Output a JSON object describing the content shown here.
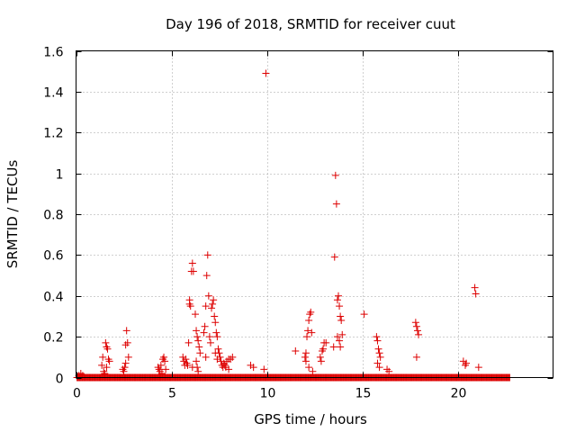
{
  "chart_data": {
    "type": "scatter",
    "title": "Day 196 of 2018, SRMTID for receiver cuut",
    "xlabel": "GPS time / hours",
    "ylabel": "SRMTID / TECUs",
    "xlim": [
      0,
      25
    ],
    "ylim": [
      0,
      1.6
    ],
    "xticks": [
      0,
      5,
      10,
      15,
      20
    ],
    "xtick_labels": [
      "0",
      "5",
      "10",
      "15",
      "20"
    ],
    "yticks": [
      0,
      0.2,
      0.4,
      0.6,
      0.8,
      1.0,
      1.2,
      1.4,
      1.6
    ],
    "ytick_labels": [
      "0",
      "0.2",
      "0.4",
      "0.6",
      "0.8",
      "1",
      "1.2",
      "1.4",
      "1.6"
    ],
    "grid": true,
    "marker": "+",
    "marker_color": "#dd0000",
    "baseline": {
      "y": 0.0,
      "x_start": 0.05,
      "x_end": 22.75,
      "step": 0.04
    },
    "series": [
      {
        "name": "SRMTID",
        "points": [
          [
            0.15,
            0.01
          ],
          [
            0.25,
            0.02
          ],
          [
            0.35,
            0.01
          ],
          [
            1.35,
            0.06
          ],
          [
            1.4,
            0.1
          ],
          [
            1.45,
            0.03
          ],
          [
            1.5,
            0.02
          ],
          [
            1.55,
            0.17
          ],
          [
            1.6,
            0.15
          ],
          [
            1.65,
            0.14
          ],
          [
            1.7,
            0.09
          ],
          [
            1.75,
            0.08
          ],
          [
            1.6,
            0.05
          ],
          [
            2.45,
            0.04
          ],
          [
            2.5,
            0.03
          ],
          [
            2.55,
            0.05
          ],
          [
            2.6,
            0.16
          ],
          [
            2.65,
            0.23
          ],
          [
            2.7,
            0.17
          ],
          [
            2.75,
            0.1
          ],
          [
            2.6,
            0.07
          ],
          [
            4.3,
            0.05
          ],
          [
            4.35,
            0.04
          ],
          [
            4.4,
            0.03
          ],
          [
            4.45,
            0.06
          ],
          [
            4.5,
            0.02
          ],
          [
            4.55,
            0.09
          ],
          [
            4.6,
            0.1
          ],
          [
            4.65,
            0.08
          ],
          [
            4.7,
            0.04
          ],
          [
            5.6,
            0.1
          ],
          [
            5.65,
            0.08
          ],
          [
            5.7,
            0.06
          ],
          [
            5.75,
            0.09
          ],
          [
            5.8,
            0.07
          ],
          [
            5.85,
            0.06
          ],
          [
            5.9,
            0.17
          ],
          [
            5.95,
            0.38
          ],
          [
            6.0,
            0.35
          ],
          [
            6.05,
            0.52
          ],
          [
            6.1,
            0.56
          ],
          [
            6.15,
            0.52
          ],
          [
            5.95,
            0.36
          ],
          [
            6.1,
            0.05
          ],
          [
            6.25,
            0.31
          ],
          [
            6.3,
            0.23
          ],
          [
            6.35,
            0.2
          ],
          [
            6.4,
            0.18
          ],
          [
            6.45,
            0.15
          ],
          [
            6.5,
            0.12
          ],
          [
            6.3,
            0.08
          ],
          [
            6.35,
            0.05
          ],
          [
            6.4,
            0.03
          ],
          [
            6.7,
            0.22
          ],
          [
            6.75,
            0.25
          ],
          [
            6.8,
            0.35
          ],
          [
            6.85,
            0.5
          ],
          [
            6.9,
            0.6
          ],
          [
            6.95,
            0.4
          ],
          [
            7.0,
            0.2
          ],
          [
            7.05,
            0.17
          ],
          [
            6.8,
            0.1
          ],
          [
            7.1,
            0.34
          ],
          [
            7.15,
            0.36
          ],
          [
            7.2,
            0.38
          ],
          [
            7.25,
            0.3
          ],
          [
            7.3,
            0.27
          ],
          [
            7.35,
            0.22
          ],
          [
            7.4,
            0.2
          ],
          [
            7.45,
            0.14
          ],
          [
            7.5,
            0.12
          ],
          [
            7.55,
            0.1
          ],
          [
            7.6,
            0.08
          ],
          [
            7.65,
            0.06
          ],
          [
            7.7,
            0.05
          ],
          [
            7.3,
            0.12
          ],
          [
            7.4,
            0.09
          ],
          [
            7.75,
            0.07
          ],
          [
            7.8,
            0.06
          ],
          [
            7.85,
            0.05
          ],
          [
            7.9,
            0.08
          ],
          [
            8.0,
            0.09
          ],
          [
            8.1,
            0.09
          ],
          [
            8.2,
            0.1
          ],
          [
            8.0,
            0.04
          ],
          [
            9.15,
            0.06
          ],
          [
            9.3,
            0.05
          ],
          [
            9.85,
            0.04
          ],
          [
            9.95,
            1.49
          ],
          [
            11.5,
            0.13
          ],
          [
            12.0,
            0.1
          ],
          [
            12.05,
            0.12
          ],
          [
            12.1,
            0.2
          ],
          [
            12.15,
            0.23
          ],
          [
            12.2,
            0.28
          ],
          [
            12.25,
            0.31
          ],
          [
            12.3,
            0.32
          ],
          [
            12.35,
            0.22
          ],
          [
            12.05,
            0.08
          ],
          [
            12.2,
            0.05
          ],
          [
            12.4,
            0.03
          ],
          [
            12.8,
            0.1
          ],
          [
            12.9,
            0.13
          ],
          [
            12.95,
            0.14
          ],
          [
            13.0,
            0.17
          ],
          [
            13.1,
            0.17
          ],
          [
            12.85,
            0.08
          ],
          [
            13.5,
            0.15
          ],
          [
            13.55,
            0.59
          ],
          [
            13.6,
            0.99
          ],
          [
            13.65,
            0.85
          ],
          [
            13.7,
            0.38
          ],
          [
            13.75,
            0.4
          ],
          [
            13.8,
            0.35
          ],
          [
            13.85,
            0.3
          ],
          [
            13.9,
            0.28
          ],
          [
            13.95,
            0.21
          ],
          [
            13.7,
            0.2
          ],
          [
            13.8,
            0.18
          ],
          [
            13.85,
            0.15
          ],
          [
            15.1,
            0.31
          ],
          [
            15.75,
            0.2
          ],
          [
            15.8,
            0.18
          ],
          [
            15.85,
            0.14
          ],
          [
            15.9,
            0.12
          ],
          [
            15.95,
            0.1
          ],
          [
            15.8,
            0.07
          ],
          [
            15.9,
            0.05
          ],
          [
            16.3,
            0.04
          ],
          [
            16.4,
            0.03
          ],
          [
            17.8,
            0.27
          ],
          [
            17.85,
            0.25
          ],
          [
            17.9,
            0.23
          ],
          [
            17.95,
            0.21
          ],
          [
            17.85,
            0.1
          ],
          [
            20.3,
            0.08
          ],
          [
            20.4,
            0.06
          ],
          [
            20.45,
            0.07
          ],
          [
            20.9,
            0.44
          ],
          [
            20.95,
            0.41
          ],
          [
            21.1,
            0.05
          ]
        ]
      }
    ]
  }
}
